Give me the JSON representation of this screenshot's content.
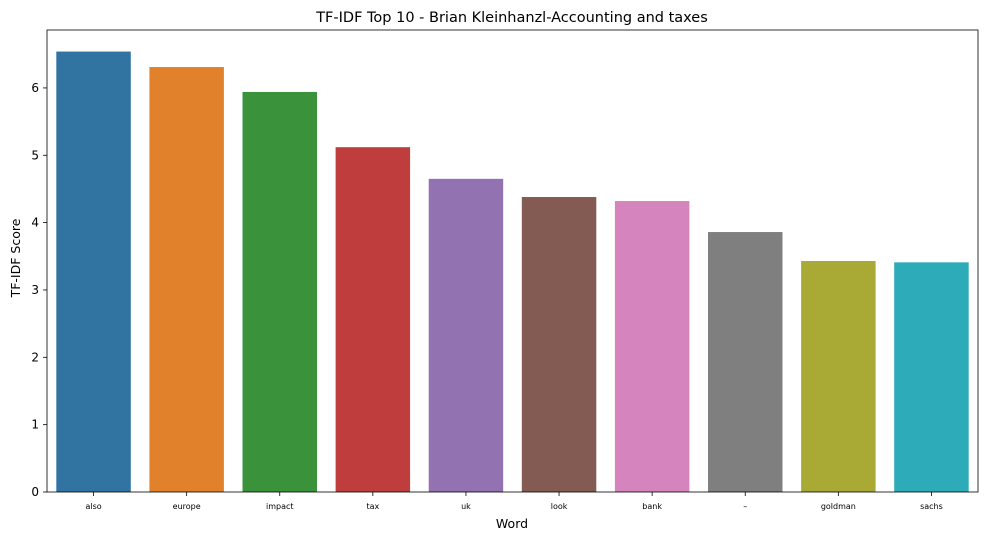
{
  "chart_data": {
    "type": "bar",
    "title": "TF-IDF Top 10 - Brian Kleinhanzl-Accounting and taxes",
    "xlabel": "Word",
    "ylabel": "TF-IDF Score",
    "categories": [
      "also",
      "europe",
      "impact",
      "tax",
      "uk",
      "look",
      "bank",
      "–",
      "goldman",
      "sachs"
    ],
    "values": [
      6.54,
      6.31,
      5.94,
      5.12,
      4.65,
      4.38,
      4.32,
      3.86,
      3.43,
      3.41
    ],
    "colors": [
      "#3274a1",
      "#e1812c",
      "#3a923a",
      "#c03d3e",
      "#9372b2",
      "#845b53",
      "#d684bd",
      "#7f7f7f",
      "#a9aa35",
      "#2eabb8"
    ],
    "ylim": [
      0,
      6.86
    ],
    "yticks": [
      0,
      1,
      2,
      3,
      4,
      5,
      6
    ],
    "grid": false,
    "legend": "none"
  }
}
